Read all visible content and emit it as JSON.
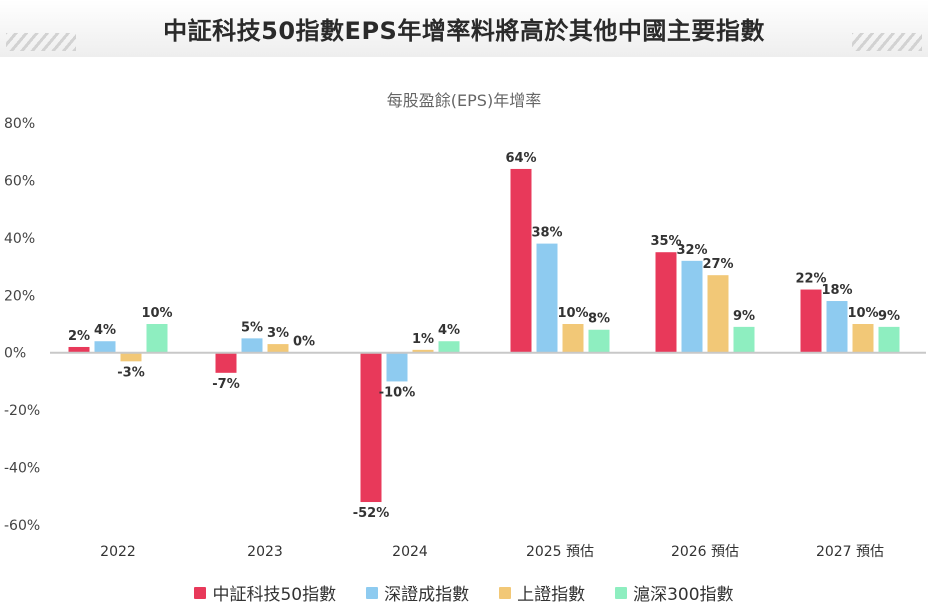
{
  "header": {
    "title": "中証科技50指數EPS年增率料將高於其他中國主要指數"
  },
  "chart_data": {
    "type": "bar",
    "title": "每股盈餘(EPS)年增率",
    "categories": [
      "2022",
      "2023",
      "2024",
      "2025 預估",
      "2026 預估",
      "2027 預估"
    ],
    "series": [
      {
        "name": "中証科技50指數",
        "color": "#e8395a",
        "values": [
          2,
          -7,
          -52,
          64,
          35,
          22
        ]
      },
      {
        "name": "深證成指數",
        "color": "#8ecbf0",
        "values": [
          4,
          5,
          -10,
          38,
          32,
          18
        ]
      },
      {
        "name": "上證指數",
        "color": "#f2c877",
        "values": [
          -3,
          3,
          1,
          10,
          27,
          10
        ]
      },
      {
        "name": "滬深300指數",
        "color": "#8eeec0",
        "values": [
          10,
          0,
          4,
          8,
          9,
          9
        ]
      }
    ],
    "ylim": [
      -60,
      80
    ],
    "yticks": [
      80,
      60,
      40,
      20,
      0,
      -20,
      -40,
      -60
    ],
    "ytick_labels": [
      "80%",
      "60%",
      "40%",
      "20%",
      "0%",
      "-20%",
      "-40%",
      "-60%"
    ],
    "data_labels": [
      [
        "2%",
        "-7%",
        "-52%",
        "64%",
        "35%",
        "22%"
      ],
      [
        "4%",
        "5%",
        "-10%",
        "38%",
        "32%",
        "18%"
      ],
      [
        "-3%",
        "3%",
        "1%",
        "10%",
        "27%",
        "10%"
      ],
      [
        "10%",
        "0%",
        "4%",
        "8%",
        "9%",
        "9%"
      ]
    ],
    "legend_position": "bottom",
    "grid": false
  }
}
